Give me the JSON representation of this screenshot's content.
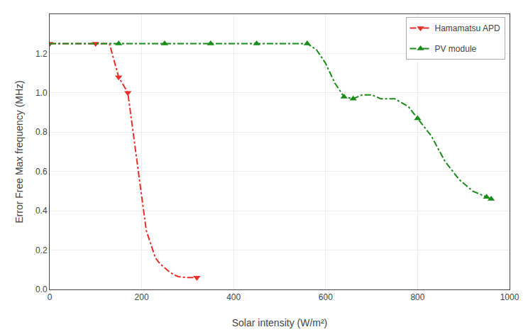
{
  "chart_data": {
    "type": "line",
    "series": [
      {
        "name": "Hamamatsu APD",
        "color": "#e8302a",
        "line_style": "dashdot",
        "marker": "triangle-down",
        "x": [
          0,
          5,
          100,
          130,
          150,
          170,
          190,
          210,
          230,
          240,
          250,
          260,
          270,
          280,
          300,
          320
        ],
        "values": [
          1.25,
          1.25,
          1.25,
          1.25,
          1.08,
          1.0,
          0.65,
          0.3,
          0.16,
          0.13,
          0.11,
          0.09,
          0.075,
          0.065,
          0.06,
          0.06
        ],
        "marker_x": [
          0,
          100,
          150,
          170,
          320
        ],
        "marker_values": [
          1.25,
          1.25,
          1.08,
          1.0,
          0.06
        ]
      },
      {
        "name": "PV module",
        "color": "#1a8c1a",
        "line_style": "dashdot",
        "marker": "triangle-up",
        "x": [
          0,
          50,
          100,
          150,
          200,
          250,
          300,
          350,
          400,
          450,
          500,
          560,
          580,
          600,
          620,
          640,
          660,
          680,
          700,
          720,
          750,
          780,
          800,
          830,
          860,
          890,
          920,
          950,
          960
        ],
        "values": [
          1.25,
          1.25,
          1.25,
          1.25,
          1.25,
          1.25,
          1.25,
          1.25,
          1.25,
          1.25,
          1.25,
          1.25,
          1.22,
          1.15,
          1.05,
          0.98,
          0.97,
          0.99,
          0.99,
          0.97,
          0.97,
          0.93,
          0.87,
          0.78,
          0.65,
          0.56,
          0.5,
          0.47,
          0.46
        ],
        "marker_x": [
          150,
          250,
          350,
          450,
          560,
          640,
          660,
          800,
          950,
          960
        ],
        "marker_values": [
          1.25,
          1.25,
          1.25,
          1.25,
          1.25,
          0.98,
          0.97,
          0.87,
          0.47,
          0.46
        ]
      }
    ],
    "xlabel": "Solar intensity (W/m²)",
    "ylabel": "Error Free Max frequency (MHz)",
    "xlim": [
      0,
      1000
    ],
    "ylim": [
      0,
      1.4
    ],
    "xticks": [
      0,
      200,
      400,
      600,
      800,
      1000
    ],
    "yticks": [
      {
        "value": 0,
        "label": "0.0"
      },
      0.2,
      0.4,
      0.6,
      0.8,
      {
        "value": 1.0,
        "label": "1.0"
      },
      1.2
    ],
    "grid": true,
    "legend": "upper right"
  }
}
